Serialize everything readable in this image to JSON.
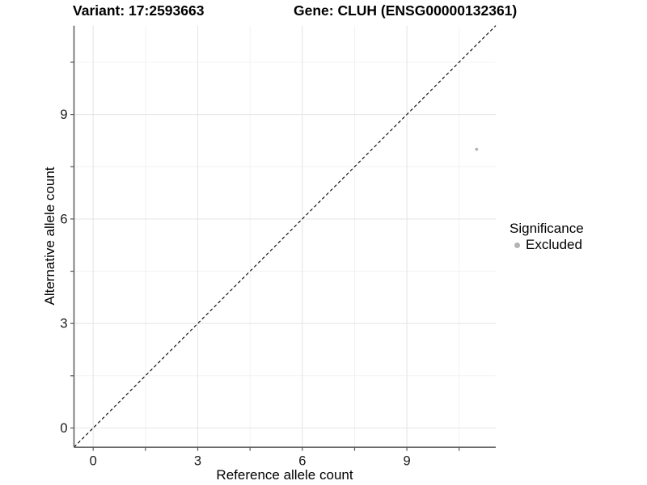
{
  "header": {
    "variant_title": "Variant: 17:2593663",
    "gene_title": "Gene: CLUH (ENSG00000132361)"
  },
  "chart_data": {
    "type": "scatter",
    "xlabel": "Reference allele count",
    "ylabel": "Alternative allele count",
    "xlim": [
      -0.55,
      11.55
    ],
    "ylim": [
      -0.55,
      11.55
    ],
    "x_major_ticks": [
      0,
      3,
      6,
      9
    ],
    "x_minor_ticks": [
      1.5,
      4.5,
      7.5,
      10.5
    ],
    "y_major_ticks": [
      0,
      3,
      6,
      9
    ],
    "y_minor_ticks": [
      1.5,
      4.5,
      7.5,
      10.5
    ],
    "grid": "major and minor gridlines on white panel, axes drawn only on left and bottom",
    "points": [
      {
        "x": 11,
        "y": 8,
        "series": "Excluded"
      }
    ],
    "reference_line": {
      "kind": "identity y = x across full panel",
      "style": "dashed",
      "color": "#000000"
    },
    "legend": {
      "title": "Significance",
      "position": "right",
      "items": [
        {
          "label": "Excluded",
          "color": "#b3b3b3"
        }
      ]
    },
    "colors": {
      "point": "#b3b3b3",
      "axis_line": "#595959",
      "tick_mark": "#595959",
      "tick_label": "#1a1a1a",
      "grid_major": "#e6e6e6",
      "grid_minor": "#f1f1f1",
      "background": "#ffffff"
    }
  }
}
